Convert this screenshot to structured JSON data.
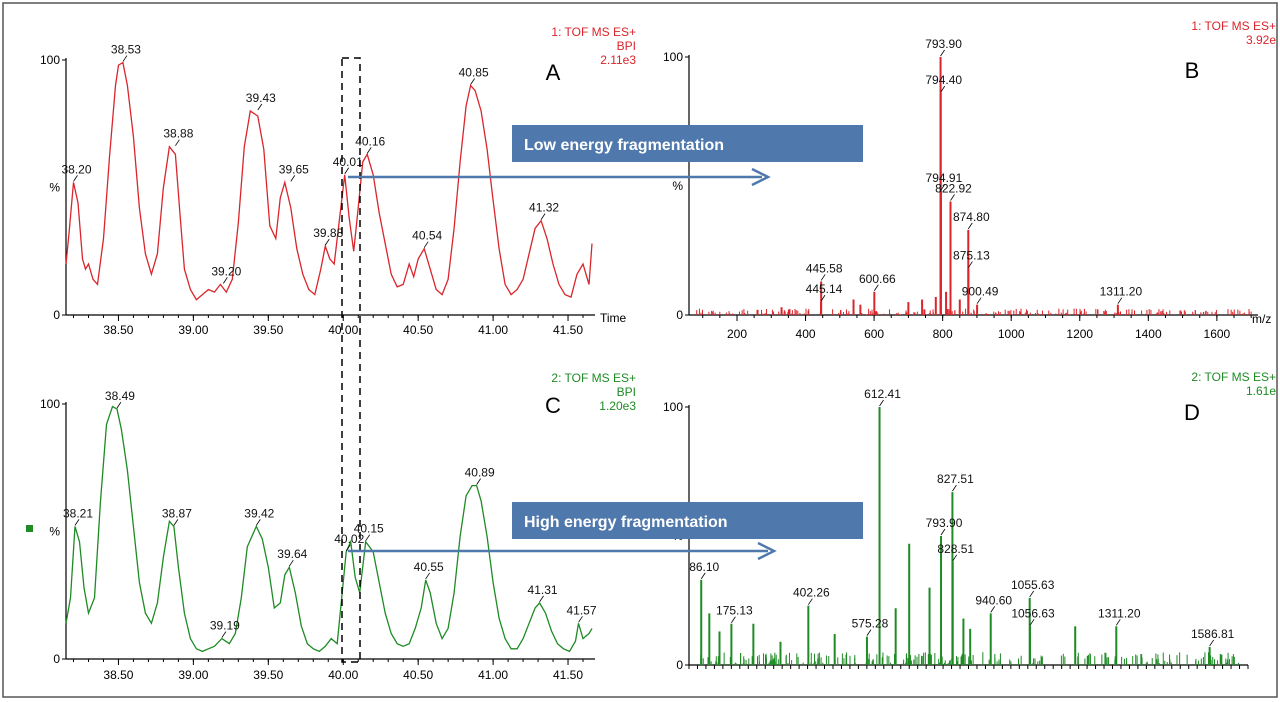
{
  "colors": {
    "red": "#d9252b",
    "green": "#1e8b24",
    "banner": "#4f78ad",
    "arrow": "#4f78ad",
    "axis": "#000000",
    "text": "#222222"
  },
  "annotations": {
    "banner_low": "Low energy fragmentation",
    "banner_high": "High energy fragmentation"
  },
  "chart_data": [
    {
      "id": "A",
      "type": "line",
      "panel_letter": "A",
      "header": [
        "1: TOF MS ES+",
        "BPI",
        "2.11e3"
      ],
      "color": "#d9252b",
      "xlabel": "Time",
      "ylabel": "%",
      "xlim": [
        38.15,
        41.68
      ],
      "ylim": [
        0,
        100
      ],
      "xticks": [
        "38.50",
        "39.00",
        "39.50",
        "40.00",
        "40.50",
        "41.00",
        "41.50"
      ],
      "yticks": [
        "0",
        "100"
      ],
      "x": [
        38.15,
        38.17,
        38.2,
        38.23,
        38.26,
        38.28,
        38.3,
        38.33,
        38.36,
        38.4,
        38.44,
        38.48,
        38.5,
        38.53,
        38.56,
        38.6,
        38.64,
        38.68,
        38.72,
        38.76,
        38.8,
        38.84,
        38.88,
        38.91,
        38.94,
        38.98,
        39.02,
        39.06,
        39.1,
        39.14,
        39.18,
        39.22,
        39.26,
        39.3,
        39.34,
        39.38,
        39.43,
        39.47,
        39.51,
        39.55,
        39.58,
        39.61,
        39.65,
        39.69,
        39.73,
        39.77,
        39.81,
        39.85,
        39.88,
        39.91,
        39.94,
        39.97,
        40.01,
        40.04,
        40.07,
        40.1,
        40.13,
        40.16,
        40.2,
        40.24,
        40.28,
        40.32,
        40.36,
        40.4,
        40.44,
        40.47,
        40.5,
        40.54,
        40.58,
        40.62,
        40.66,
        40.7,
        40.74,
        40.78,
        40.82,
        40.85,
        40.88,
        40.92,
        40.96,
        41.0,
        41.04,
        41.08,
        41.12,
        41.16,
        41.2,
        41.24,
        41.28,
        41.32,
        41.36,
        41.4,
        41.44,
        41.48,
        41.52,
        41.56,
        41.6,
        41.64,
        41.66
      ],
      "y": [
        20,
        32,
        52,
        44,
        22,
        18,
        20,
        14,
        12,
        30,
        62,
        90,
        98,
        99,
        90,
        70,
        42,
        24,
        16,
        24,
        50,
        66,
        63,
        40,
        18,
        10,
        6,
        8,
        10,
        9,
        12,
        9,
        14,
        36,
        66,
        80,
        78,
        65,
        35,
        30,
        46,
        52,
        42,
        26,
        16,
        10,
        8,
        18,
        27,
        22,
        20,
        35,
        55,
        38,
        25,
        42,
        60,
        63,
        55,
        40,
        28,
        16,
        11,
        12,
        20,
        15,
        22,
        26,
        18,
        10,
        8,
        14,
        34,
        60,
        82,
        90,
        88,
        80,
        65,
        45,
        26,
        12,
        8,
        10,
        14,
        24,
        34,
        37,
        30,
        20,
        12,
        8,
        7,
        16,
        20,
        12,
        28
      ],
      "peak_labels": [
        {
          "x": 38.2,
          "y": 52,
          "text": "38.20"
        },
        {
          "x": 38.53,
          "y": 99,
          "text": "38.53"
        },
        {
          "x": 38.88,
          "y": 66,
          "text": "38.88"
        },
        {
          "x": 39.2,
          "y": 12,
          "text": "39.20"
        },
        {
          "x": 39.43,
          "y": 80,
          "text": "39.43"
        },
        {
          "x": 39.65,
          "y": 52,
          "text": "39.65"
        },
        {
          "x": 39.88,
          "y": 27,
          "text": "39.88"
        },
        {
          "x": 40.01,
          "y": 55,
          "text": "40.01"
        },
        {
          "x": 40.16,
          "y": 63,
          "text": "40.16"
        },
        {
          "x": 40.54,
          "y": 26,
          "text": "40.54"
        },
        {
          "x": 40.85,
          "y": 90,
          "text": "40.85"
        },
        {
          "x": 41.32,
          "y": 37,
          "text": "41.32"
        }
      ]
    },
    {
      "id": "B",
      "type": "bar",
      "panel_letter": "B",
      "header": [
        "1: TOF MS ES+",
        "3.92e"
      ],
      "color": "#d9252b",
      "xlabel": "m/z",
      "ylabel": "%",
      "xlim": [
        60,
        1720
      ],
      "ylim": [
        0,
        100
      ],
      "xticks": [
        "200",
        "400",
        "600",
        "800",
        "1000",
        "1200",
        "1400",
        "1600"
      ],
      "yticks": [
        "0",
        "100"
      ],
      "peaks": [
        {
          "x": 793.9,
          "y": 100
        },
        {
          "x": 794.4,
          "y": 86
        },
        {
          "x": 794.91,
          "y": 48
        },
        {
          "x": 822.92,
          "y": 44
        },
        {
          "x": 874.8,
          "y": 33
        },
        {
          "x": 875.13,
          "y": 18
        },
        {
          "x": 445.58,
          "y": 13
        },
        {
          "x": 445.14,
          "y": 5
        },
        {
          "x": 600.66,
          "y": 9
        },
        {
          "x": 900.49,
          "y": 4
        },
        {
          "x": 1311.2,
          "y": 4
        },
        {
          "x": 540,
          "y": 6
        },
        {
          "x": 560,
          "y": 4
        },
        {
          "x": 700,
          "y": 5
        },
        {
          "x": 740,
          "y": 6
        },
        {
          "x": 780,
          "y": 7
        },
        {
          "x": 810,
          "y": 9
        },
        {
          "x": 850,
          "y": 6
        },
        {
          "x": 330,
          "y": 3
        },
        {
          "x": 260,
          "y": 2
        }
      ],
      "peak_labels": [
        {
          "x": 793.9,
          "y": 100,
          "text": "793.90"
        },
        {
          "x": 794.4,
          "y": 86,
          "text": "794.40"
        },
        {
          "x": 794.91,
          "y": 48,
          "text": "794.91"
        },
        {
          "x": 822.92,
          "y": 44,
          "text": "822.92"
        },
        {
          "x": 874.8,
          "y": 33,
          "text": "874.80"
        },
        {
          "x": 875.13,
          "y": 18,
          "text": "875.13"
        },
        {
          "x": 445.58,
          "y": 13,
          "text": "445.58"
        },
        {
          "x": 445.14,
          "y": 5,
          "text": "445.14"
        },
        {
          "x": 600.66,
          "y": 9,
          "text": "600.66"
        },
        {
          "x": 900.49,
          "y": 4,
          "text": "900.49"
        },
        {
          "x": 1311.2,
          "y": 4,
          "text": "1311.20"
        }
      ]
    },
    {
      "id": "C",
      "type": "line",
      "panel_letter": "C",
      "header": [
        "2: TOF MS ES+",
        "BPI",
        "1.20e3"
      ],
      "color": "#1e8b24",
      "xlabel": "",
      "ylabel": "%",
      "xlim": [
        38.15,
        41.68
      ],
      "ylim": [
        0,
        100
      ],
      "xticks": [
        "38.50",
        "39.00",
        "39.50",
        "40.00",
        "40.50",
        "41.00",
        "41.50"
      ],
      "yticks": [
        "0",
        "100"
      ],
      "x": [
        38.15,
        38.18,
        38.21,
        38.24,
        38.27,
        38.3,
        38.34,
        38.38,
        38.42,
        38.46,
        38.49,
        38.52,
        38.56,
        38.6,
        38.64,
        38.68,
        38.72,
        38.76,
        38.8,
        38.84,
        38.87,
        38.9,
        38.94,
        38.98,
        39.02,
        39.06,
        39.1,
        39.14,
        39.19,
        39.24,
        39.28,
        39.32,
        39.36,
        39.42,
        39.46,
        39.5,
        39.54,
        39.58,
        39.61,
        39.64,
        39.68,
        39.72,
        39.76,
        39.8,
        39.84,
        39.88,
        39.92,
        39.96,
        40.02,
        40.05,
        40.08,
        40.11,
        40.15,
        40.2,
        40.24,
        40.28,
        40.32,
        40.36,
        40.4,
        40.44,
        40.48,
        40.52,
        40.55,
        40.58,
        40.62,
        40.66,
        40.7,
        40.74,
        40.78,
        40.82,
        40.86,
        40.89,
        40.92,
        40.96,
        41.0,
        41.04,
        41.08,
        41.12,
        41.16,
        41.2,
        41.24,
        41.28,
        41.31,
        41.35,
        41.39,
        41.43,
        41.47,
        41.51,
        41.55,
        41.57,
        41.6,
        41.64,
        41.66
      ],
      "y": [
        14,
        24,
        52,
        46,
        28,
        18,
        24,
        62,
        92,
        99,
        98,
        90,
        74,
        52,
        30,
        18,
        14,
        22,
        40,
        54,
        52,
        36,
        18,
        8,
        4,
        3,
        4,
        5,
        8,
        6,
        10,
        24,
        44,
        52,
        47,
        36,
        20,
        22,
        33,
        36,
        26,
        13,
        6,
        4,
        3,
        5,
        8,
        6,
        42,
        46,
        32,
        26,
        46,
        42,
        30,
        18,
        10,
        6,
        5,
        6,
        12,
        20,
        31,
        26,
        14,
        8,
        12,
        26,
        48,
        64,
        68,
        68,
        62,
        48,
        30,
        16,
        8,
        4,
        4,
        8,
        14,
        20,
        22,
        18,
        11,
        6,
        4,
        3,
        7,
        14,
        8,
        10,
        12
      ],
      "peak_labels": [
        {
          "x": 38.21,
          "y": 52,
          "text": "38.21"
        },
        {
          "x": 38.49,
          "y": 98,
          "text": "38.49"
        },
        {
          "x": 38.87,
          "y": 52,
          "text": "38.87"
        },
        {
          "x": 39.19,
          "y": 8,
          "text": "39.19"
        },
        {
          "x": 39.42,
          "y": 52,
          "text": "39.42"
        },
        {
          "x": 39.64,
          "y": 36,
          "text": "39.64"
        },
        {
          "x": 40.02,
          "y": 42,
          "text": "40.02"
        },
        {
          "x": 40.15,
          "y": 46,
          "text": "40.15"
        },
        {
          "x": 40.55,
          "y": 31,
          "text": "40.55"
        },
        {
          "x": 40.89,
          "y": 68,
          "text": "40.89"
        },
        {
          "x": 41.31,
          "y": 22,
          "text": "41.31"
        },
        {
          "x": 41.57,
          "y": 14,
          "text": "41.57"
        }
      ]
    },
    {
      "id": "D",
      "type": "bar",
      "panel_letter": "D",
      "header": [
        "2: TOF MS ES+",
        "1.61e"
      ],
      "color": "#1e8b24",
      "xlabel": "",
      "ylabel": "%",
      "xlim": [
        50,
        1700
      ],
      "ylim": [
        0,
        100
      ],
      "yticks": [
        "0",
        "100"
      ],
      "peaks": [
        {
          "x": 612.41,
          "y": 100
        },
        {
          "x": 827.51,
          "y": 67
        },
        {
          "x": 793.9,
          "y": 50
        },
        {
          "x": 828.51,
          "y": 40
        },
        {
          "x": 1055.63,
          "y": 26
        },
        {
          "x": 1056.63,
          "y": 15
        },
        {
          "x": 940.6,
          "y": 20
        },
        {
          "x": 402.26,
          "y": 23
        },
        {
          "x": 575.28,
          "y": 11
        },
        {
          "x": 86.1,
          "y": 33
        },
        {
          "x": 175.13,
          "y": 16
        },
        {
          "x": 1311.2,
          "y": 15
        },
        {
          "x": 1586.81,
          "y": 7
        },
        {
          "x": 700,
          "y": 47
        },
        {
          "x": 760,
          "y": 30
        },
        {
          "x": 660,
          "y": 22
        },
        {
          "x": 860,
          "y": 18
        },
        {
          "x": 880,
          "y": 14
        },
        {
          "x": 1190,
          "y": 15
        },
        {
          "x": 110,
          "y": 20
        },
        {
          "x": 140,
          "y": 13
        },
        {
          "x": 240,
          "y": 16
        },
        {
          "x": 320,
          "y": 9
        },
        {
          "x": 480,
          "y": 12
        }
      ],
      "peak_labels": [
        {
          "x": 612.41,
          "y": 100,
          "text": "612.41"
        },
        {
          "x": 827.51,
          "y": 67,
          "text": "827.51"
        },
        {
          "x": 793.9,
          "y": 50,
          "text": "793.90"
        },
        {
          "x": 828.51,
          "y": 40,
          "text": "828.51"
        },
        {
          "x": 1055.63,
          "y": 26,
          "text": "1055.63"
        },
        {
          "x": 1056.63,
          "y": 15,
          "text": "1056.63"
        },
        {
          "x": 940.6,
          "y": 20,
          "text": "940.60"
        },
        {
          "x": 402.26,
          "y": 23,
          "text": "402.26"
        },
        {
          "x": 575.28,
          "y": 11,
          "text": "575.28"
        },
        {
          "x": 86.1,
          "y": 33,
          "text": "86.10"
        },
        {
          "x": 175.13,
          "y": 16,
          "text": "175.13"
        },
        {
          "x": 1311.2,
          "y": 15,
          "text": "1311.20"
        },
        {
          "x": 1586.81,
          "y": 7,
          "text": "1586.81"
        }
      ]
    }
  ]
}
